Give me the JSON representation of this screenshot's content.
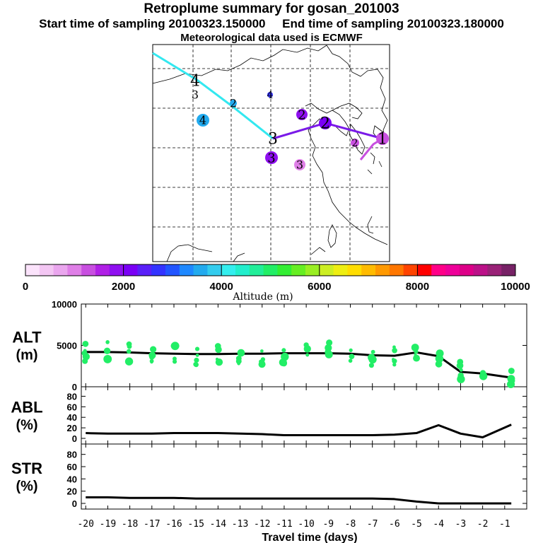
{
  "header": {
    "title": "Retroplume summary for gosan_201003",
    "start_label": "Start time of sampling 20100323.150000",
    "end_label": "End time of sampling 20100323.180000",
    "met_label": "Meteorological data used is ECMWF"
  },
  "colorbar": {
    "ticks": [
      "0",
      "2000",
      "4000",
      "6000",
      "8000",
      "10000"
    ],
    "label": "Altitude (m)",
    "colors": [
      "#fbe3fb",
      "#f3c6f3",
      "#eaa6ee",
      "#df7fe7",
      "#c84fe0",
      "#b020e6",
      "#8f10f0",
      "#7a00f5",
      "#5a20f8",
      "#3333ff",
      "#2255ff",
      "#1e88ff",
      "#22aaee",
      "#33ccee",
      "#33eeee",
      "#22eecc",
      "#22ee99",
      "#22ee66",
      "#33ee33",
      "#66ee22",
      "#99ee22",
      "#ccee22",
      "#eeee11",
      "#ffdd00",
      "#ffbb00",
      "#ff9900",
      "#ff7700",
      "#ff4400",
      "#ff0000",
      "#ff0088",
      "#ee0099",
      "#dd0088",
      "#bb1188",
      "#992277",
      "#772266"
    ]
  },
  "map": {
    "markers": [
      {
        "label": "1",
        "color": "#c84fe0"
      },
      {
        "label": "2",
        "color": "#8f10f0"
      },
      {
        "label": "2",
        "color": "#7a00f5"
      },
      {
        "label": "2",
        "color": "#c84fe0"
      },
      {
        "label": "3",
        "color": "#8f10f0"
      },
      {
        "label": "3",
        "color": "#df7fe7"
      },
      {
        "label": "4",
        "color": "#22aaee"
      },
      {
        "label": "4",
        "color": "#3333ff"
      },
      {
        "label": "2",
        "color": "#22aaee"
      },
      {
        "label": "3",
        "color": "#33eeee"
      },
      {
        "label": "4",
        "color": "#33eeee"
      },
      {
        "label": "3",
        "color": "#33eeee"
      }
    ]
  },
  "chart_data": [
    {
      "type": "line",
      "panel": "ALT",
      "ylabel_line1": "ALT",
      "ylabel_line2": "(m)",
      "ylim": [
        0,
        10000
      ],
      "yticks": [
        "0",
        "5000",
        "10000"
      ],
      "x": [
        -20,
        -19,
        -18,
        -17,
        -16,
        -15,
        -14,
        -13,
        -12,
        -11,
        -10,
        -9,
        -8,
        -7,
        -6,
        -5,
        -4,
        -3,
        -2,
        -0.7
      ],
      "values": [
        4200,
        4200,
        4150,
        4050,
        4000,
        3950,
        3950,
        4000,
        4000,
        4050,
        4050,
        4050,
        4000,
        3800,
        3750,
        4150,
        3700,
        1800,
        1600,
        1100
      ]
    },
    {
      "type": "line",
      "panel": "ABL",
      "ylabel_line1": "ABL",
      "ylabel_line2": "(%)",
      "ylim": [
        0,
        90
      ],
      "yticks": [
        "0",
        "20",
        "40",
        "60",
        "80"
      ],
      "x": [
        -20,
        -19,
        -18,
        -17,
        -16,
        -15,
        -14,
        -13,
        -12,
        -11,
        -10,
        -9,
        -8,
        -7,
        -6,
        -5,
        -4,
        -3,
        -2,
        -0.7
      ],
      "values": [
        10,
        9,
        9,
        9,
        10,
        10,
        10,
        9,
        8,
        6,
        6,
        6,
        6,
        6,
        7,
        10,
        25,
        9,
        2,
        26
      ]
    },
    {
      "type": "line",
      "panel": "STR",
      "ylabel_line1": "STR",
      "ylabel_line2": "(%)",
      "ylim": [
        0,
        90
      ],
      "yticks": [
        "0",
        "20",
        "40",
        "60",
        "80"
      ],
      "x": [
        -20,
        -19,
        -18,
        -17,
        -16,
        -15,
        -14,
        -13,
        -12,
        -11,
        -10,
        -9,
        -8,
        -7,
        -6,
        -5,
        -4,
        -3,
        -2,
        -0.7
      ],
      "values": [
        10,
        10,
        9,
        9,
        9,
        8,
        8,
        8,
        8,
        8,
        8,
        8,
        8,
        8,
        7,
        3,
        0,
        0,
        0,
        0
      ]
    }
  ],
  "xaxis": {
    "ticks": [
      "-20",
      "-19",
      "-18",
      "-17",
      "-16",
      "-15",
      "-14",
      "-13",
      "-12",
      "-11",
      "-10",
      "-9",
      "-8",
      "-7",
      "-6",
      "-5",
      "-4",
      "-3",
      "-2",
      "-1"
    ],
    "label": "Travel time (days)"
  }
}
